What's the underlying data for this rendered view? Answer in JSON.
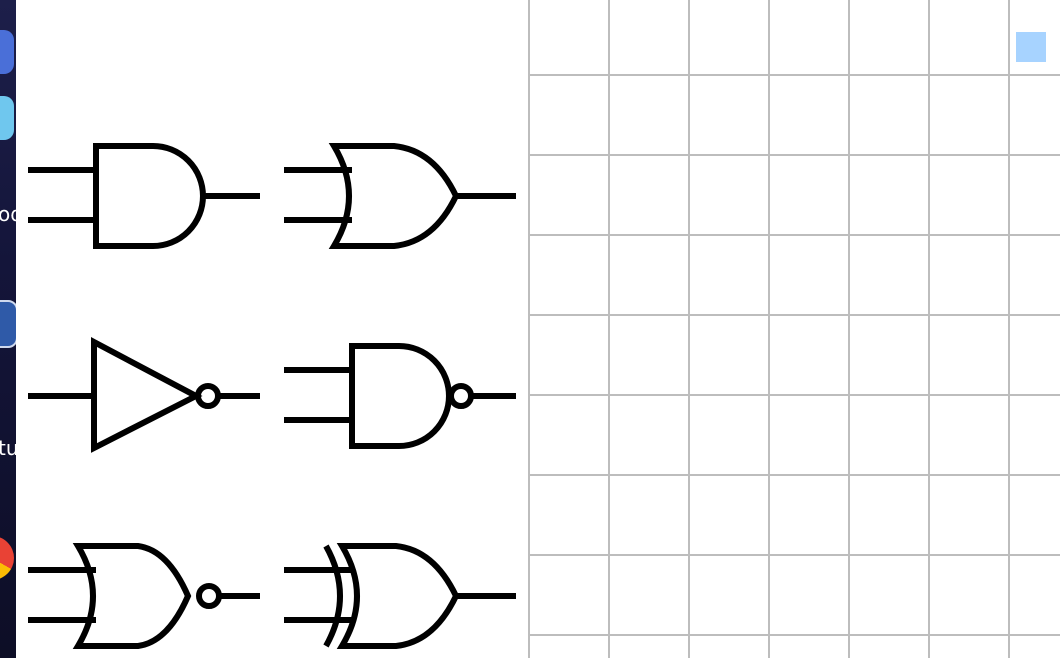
{
  "desktop": {
    "partial_labels": [
      "od",
      "tu"
    ]
  },
  "palette": {
    "gates": [
      {
        "type": "AND",
        "icon": "and-gate-icon"
      },
      {
        "type": "OR",
        "icon": "or-gate-icon"
      },
      {
        "type": "NOT",
        "icon": "not-gate-icon"
      },
      {
        "type": "NAND",
        "icon": "nand-gate-icon"
      },
      {
        "type": "NOR",
        "icon": "nor-gate-icon"
      },
      {
        "type": "XOR",
        "icon": "xor-gate-icon"
      }
    ]
  },
  "canvas": {
    "grid": true,
    "grid_color": "#bdbdbd",
    "selection_color": "#a7d3ff"
  }
}
